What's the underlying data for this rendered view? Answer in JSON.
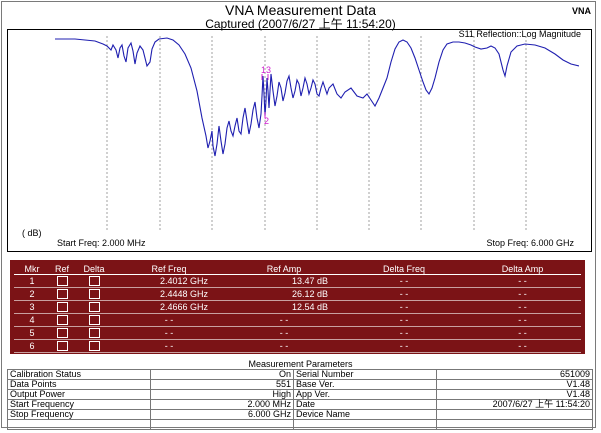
{
  "header": {
    "title": "VNA Measurement Data",
    "subtitle": "Captured (2007/6/27 上午 11:54:20)",
    "corner_tag": "VNA"
  },
  "chart": {
    "trace_label": "S11 Reflection::Log Magnitude",
    "y_unit": "( dB)",
    "start_freq": "Start Freq: 2.000 MHz",
    "stop_freq": "Stop Freq: 6.000 GHz",
    "trace_color": "#1f1fb0",
    "marker_color": "#d020d0",
    "grid": true
  },
  "chart_data": {
    "type": "line",
    "title": "S11 Reflection::Log Magnitude",
    "xlabel": "",
    "ylabel": "( dB)",
    "x_range_label": [
      "Start Freq: 2.000 MHz",
      "Stop Freq: 6.000 GHz"
    ],
    "markers": [
      {
        "label": "1",
        "freq": "2.4012 GHz",
        "amp": "13.47 dB"
      },
      {
        "label": "2",
        "freq": "2.4448 GHz",
        "amp": "26.12 dB"
      },
      {
        "label": "3",
        "freq": "2.4666 GHz",
        "amp": "12.54 dB"
      }
    ]
  },
  "marker_table": {
    "headers": [
      "Mkr",
      "Ref",
      "Delta",
      "Ref Freq",
      "Ref Amp",
      "Delta Freq",
      "Delta Amp"
    ],
    "rows": [
      {
        "mkr": "1",
        "ref_freq": "2.4012 GHz",
        "ref_amp": "13.47 dB",
        "delta_freq": "- -",
        "delta_amp": "- -"
      },
      {
        "mkr": "2",
        "ref_freq": "2.4448 GHz",
        "ref_amp": "26.12 dB",
        "delta_freq": "- -",
        "delta_amp": "- -"
      },
      {
        "mkr": "3",
        "ref_freq": "2.4666 GHz",
        "ref_amp": "12.54 dB",
        "delta_freq": "- -",
        "delta_amp": "- -"
      },
      {
        "mkr": "4",
        "ref_freq": "- -",
        "ref_amp": "- -",
        "delta_freq": "- -",
        "delta_amp": "- -"
      },
      {
        "mkr": "5",
        "ref_freq": "- -",
        "ref_amp": "- -",
        "delta_freq": "- -",
        "delta_amp": "- -"
      },
      {
        "mkr": "6",
        "ref_freq": "- -",
        "ref_amp": "- -",
        "delta_freq": "- -",
        "delta_amp": "- -"
      }
    ]
  },
  "params": {
    "title": "Measurement Parameters",
    "rows": [
      {
        "l1": "Calibration Status",
        "v1": "On",
        "l2": "Serial Number",
        "v2": "651009"
      },
      {
        "l1": "Data Points",
        "v1": "551",
        "l2": "Base Ver.",
        "v2": "V1.48"
      },
      {
        "l1": "Output Power",
        "v1": "High",
        "l2": "App Ver.",
        "v2": "V1.48"
      },
      {
        "l1": "Start Frequency",
        "v1": "2.000 MHz",
        "l2": "Date",
        "v2": "2007/6/27 上午 11:54:20"
      },
      {
        "l1": "Stop Frequency",
        "v1": "6.000 GHz",
        "l2": "Device Name",
        "v2": ""
      }
    ]
  }
}
